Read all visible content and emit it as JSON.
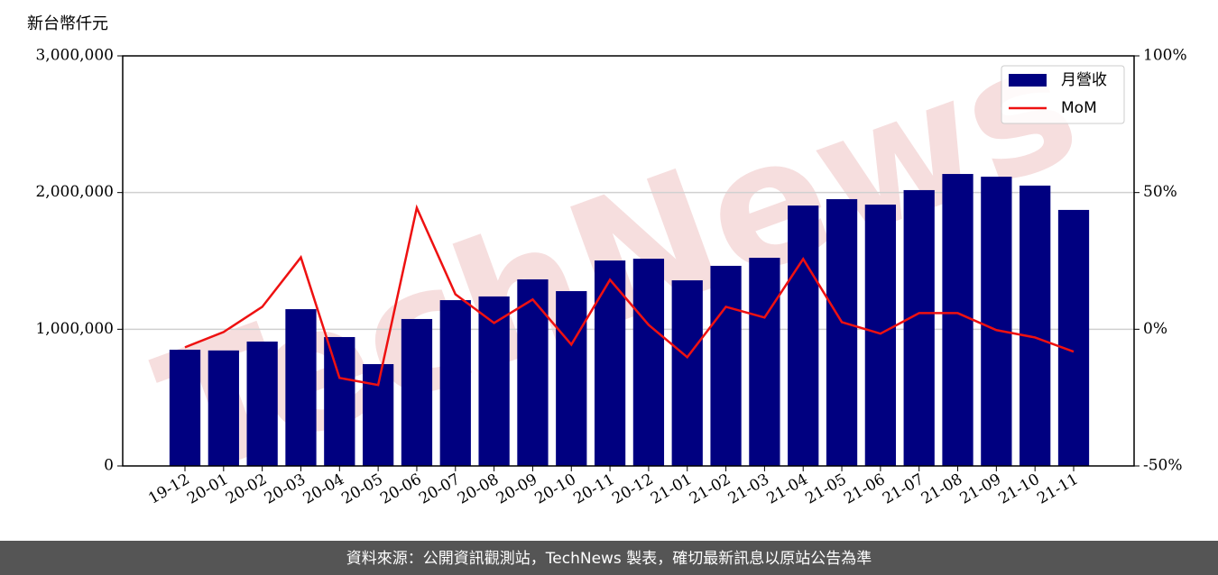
{
  "chart_data": {
    "type": "bar",
    "y_label": "新台幣仟元",
    "watermark": "TechNews",
    "footer": "資料來源：公開資訊觀測站，TechNews 製表，確切最新訊息以原站公告為準",
    "categories": [
      "19-12",
      "20-01",
      "20-02",
      "20-03",
      "20-04",
      "20-05",
      "20-06",
      "20-07",
      "20-08",
      "20-09",
      "20-10",
      "20-11",
      "20-12",
      "21-01",
      "21-02",
      "21-03",
      "21-04",
      "21-05",
      "21-06",
      "21-07",
      "21-08",
      "21-09",
      "21-10",
      "21-11"
    ],
    "series": [
      {
        "name": "月營收",
        "type": "bar",
        "color": "#000080",
        "values": [
          850000,
          845000,
          910000,
          1147000,
          943000,
          745000,
          1075000,
          1213000,
          1240000,
          1365000,
          1279000,
          1503000,
          1516000,
          1358000,
          1464000,
          1523000,
          1905000,
          1952000,
          1912000,
          2018000,
          2136000,
          2116000,
          2051000,
          1873000
        ]
      },
      {
        "name": "MoM",
        "type": "line",
        "axis": "y2",
        "color": "#ee1111",
        "values": [
          -6.6,
          -1,
          8.2,
          26.3,
          -17.8,
          -20.4,
          44.4,
          12.8,
          2.3,
          10.9,
          -5.6,
          18.1,
          1.6,
          -10.2,
          8.2,
          4.3,
          25.7,
          2.6,
          -1.6,
          5.9,
          5.9,
          -0.3,
          -3,
          -8.2
        ]
      }
    ],
    "ylim": [
      0,
      3000000
    ],
    "yticks": [
      0,
      {
        "value": 1000000,
        "label": "1,000,000"
      },
      {
        "value": 2000000,
        "label": "2,000,000"
      },
      {
        "value": 3000000,
        "label": "3,000,000"
      }
    ],
    "y2lim": [
      -50,
      100
    ],
    "y2ticks": [
      {
        "value": -50,
        "label": "-50%"
      },
      {
        "value": 0,
        "label": "0%"
      },
      {
        "value": 50,
        "label": "50%"
      },
      {
        "value": 100,
        "label": "100%"
      }
    ],
    "grid": true,
    "legend": "upper right"
  }
}
